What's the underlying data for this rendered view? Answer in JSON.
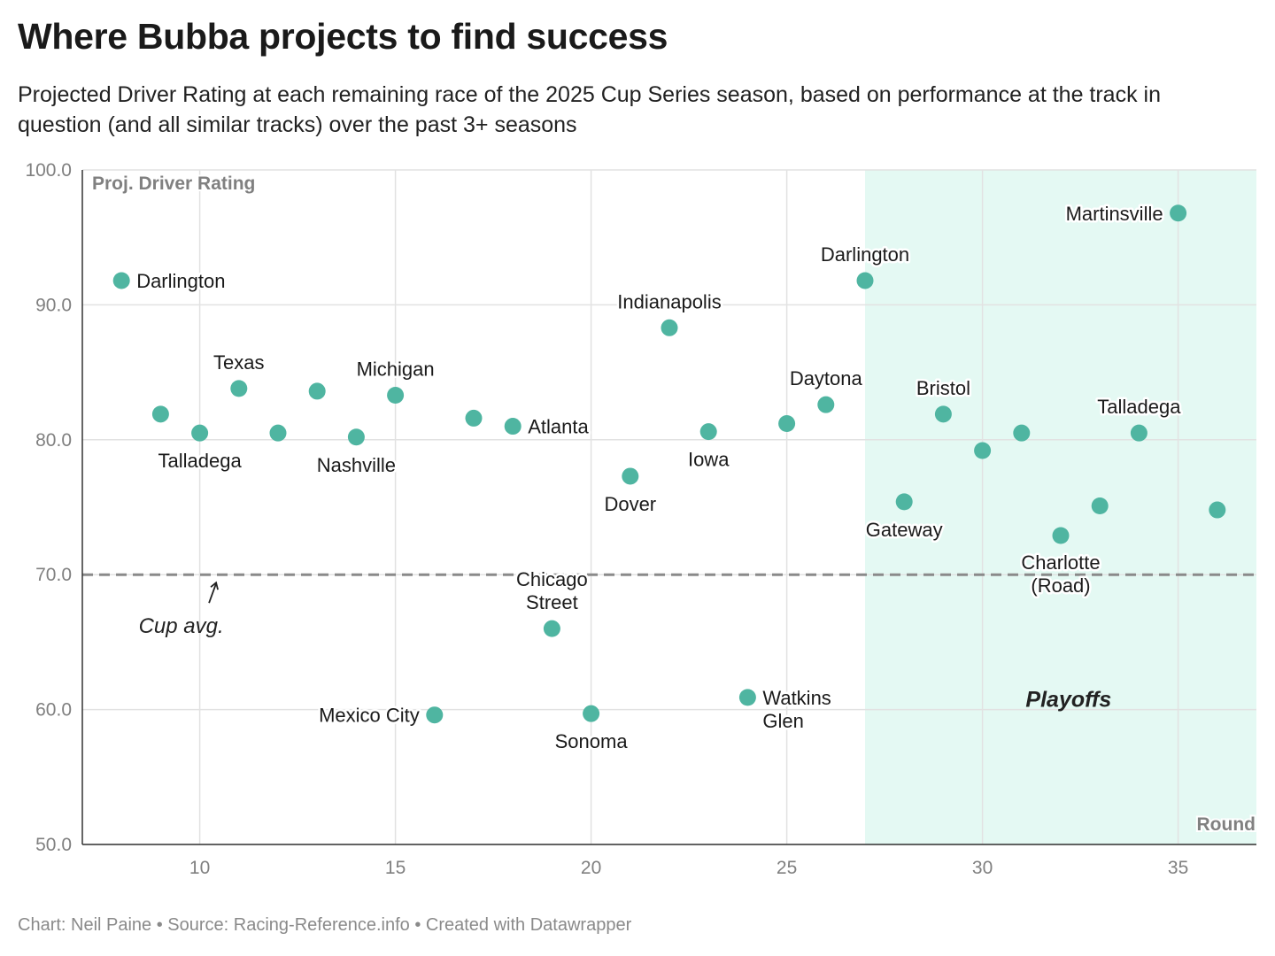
{
  "header": {
    "title": "Where Bubba projects to find success",
    "subtitle": "Projected Driver Rating at each remaining race of the 2025 Cup Series season, based on performance at the track in question (and all similar tracks) over the past 3+ seasons"
  },
  "footer": {
    "credit": "Chart: Neil Paine • Source: Racing-Reference.info • Created with Datawrapper"
  },
  "colors": {
    "dot": "#4fb5a1",
    "playoff_band": "#e4f9f3",
    "grid": "#e2e2e2",
    "avg_line": "#8a8a8a"
  },
  "chart_data": {
    "type": "scatter",
    "ylabel": "Proj. Driver Rating",
    "xlabel": "Round",
    "xlim": [
      7,
      37
    ],
    "ylim": [
      50,
      100
    ],
    "x_ticks": [
      10,
      15,
      20,
      25,
      30,
      35
    ],
    "y_ticks": [
      "100.0",
      "90.0",
      "80.0",
      "70.0",
      "60.0",
      "50.0"
    ],
    "grid": true,
    "reference_line": {
      "y": 70,
      "label": "Cup avg."
    },
    "shaded_region": {
      "x_from": 27,
      "x_to": 37,
      "label": "Playoffs"
    },
    "points": [
      {
        "x": 8,
        "y": 91.8,
        "label": "Darlington"
      },
      {
        "x": 9,
        "y": 81.9,
        "label": ""
      },
      {
        "x": 10,
        "y": 80.5,
        "label": "Talladega"
      },
      {
        "x": 11,
        "y": 83.8,
        "label": "Texas"
      },
      {
        "x": 12,
        "y": 80.5,
        "label": ""
      },
      {
        "x": 13,
        "y": 83.6,
        "label": ""
      },
      {
        "x": 14,
        "y": 80.2,
        "label": "Nashville"
      },
      {
        "x": 15,
        "y": 83.3,
        "label": "Michigan"
      },
      {
        "x": 16,
        "y": 59.6,
        "label": "Mexico City"
      },
      {
        "x": 17,
        "y": 81.6,
        "label": ""
      },
      {
        "x": 18,
        "y": 81.0,
        "label": "Atlanta"
      },
      {
        "x": 19,
        "y": 66.0,
        "label": "Chicago Street"
      },
      {
        "x": 20,
        "y": 59.7,
        "label": "Sonoma"
      },
      {
        "x": 21,
        "y": 77.3,
        "label": "Dover"
      },
      {
        "x": 22,
        "y": 88.3,
        "label": "Indianapolis"
      },
      {
        "x": 23,
        "y": 80.6,
        "label": "Iowa"
      },
      {
        "x": 24,
        "y": 60.9,
        "label": "Watkins Glen"
      },
      {
        "x": 25,
        "y": 81.2,
        "label": ""
      },
      {
        "x": 26,
        "y": 82.6,
        "label": "Daytona"
      },
      {
        "x": 27,
        "y": 91.8,
        "label": "Darlington"
      },
      {
        "x": 28,
        "y": 75.4,
        "label": "Gateway"
      },
      {
        "x": 29,
        "y": 81.9,
        "label": "Bristol"
      },
      {
        "x": 30,
        "y": 79.2,
        "label": ""
      },
      {
        "x": 31,
        "y": 80.5,
        "label": ""
      },
      {
        "x": 32,
        "y": 72.9,
        "label": "Charlotte (Road)"
      },
      {
        "x": 33,
        "y": 75.1,
        "label": ""
      },
      {
        "x": 34,
        "y": 80.5,
        "label": "Talladega"
      },
      {
        "x": 35,
        "y": 96.8,
        "label": "Martinsville"
      },
      {
        "x": 36,
        "y": 74.8,
        "label": ""
      }
    ]
  }
}
